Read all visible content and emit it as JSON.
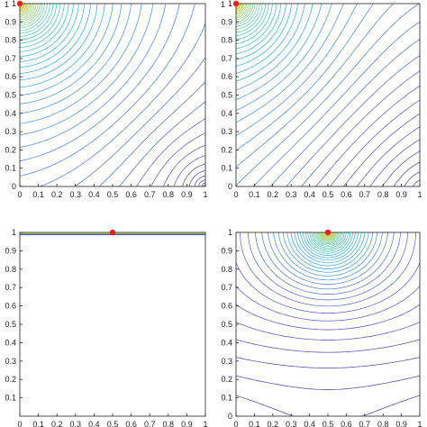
{
  "figure": {
    "background": "#ffffff",
    "axis_color": "#222222",
    "source_point_color": "#e8201e",
    "colormap": [
      "#3b2c86",
      "#4a4fb2",
      "#3f7fd0",
      "#2aa6c6",
      "#4cc49b",
      "#a6cf55",
      "#f0c43a",
      "#fbe55c"
    ]
  },
  "chart_data": [
    {
      "type": "line",
      "subtype": "contour",
      "panel": "top-left",
      "xlim": [
        0,
        1
      ],
      "ylim": [
        0,
        1
      ],
      "xticks": [
        "0",
        "0.1",
        "0.2",
        "0.3",
        "0.4",
        "0.5",
        "0.6",
        "0.7",
        "0.8",
        "0.9",
        "1"
      ],
      "yticks": [
        "0",
        "0.1",
        "0.2",
        "0.3",
        "0.4",
        "0.5",
        "0.6",
        "0.7",
        "0.8",
        "0.9",
        "1"
      ],
      "source_point": {
        "x": 0.0,
        "y": 1.0
      },
      "source_label": "1",
      "contour_levels": 60,
      "grid": false
    },
    {
      "type": "line",
      "subtype": "contour",
      "panel": "top-right",
      "xlim": [
        0,
        1
      ],
      "ylim": [
        0,
        1
      ],
      "xticks": [
        "0",
        "0.1",
        "0.2",
        "0.3",
        "0.4",
        "0.5",
        "0.6",
        "0.7",
        "0.8",
        "0.9",
        "1"
      ],
      "yticks": [
        "0",
        "0.1",
        "0.2",
        "0.3",
        "0.4",
        "0.5",
        "0.6",
        "0.7",
        "0.8",
        "0.9",
        "1"
      ],
      "source_point": {
        "x": 0.0,
        "y": 1.0
      },
      "source_label": "1",
      "contour_levels": 55,
      "grid": false
    },
    {
      "type": "line",
      "subtype": "contour",
      "panel": "bottom-left",
      "xlim": [
        0,
        1
      ],
      "ylim": [
        0,
        1
      ],
      "xticks": [
        "0",
        "0.1",
        "0.2",
        "0.3",
        "0.4",
        "0.5",
        "0.6",
        "0.7",
        "0.8",
        "0.9",
        "1"
      ],
      "yticks": [
        "0.1",
        "0.2",
        "0.3",
        "0.4",
        "0.5",
        "0.6",
        "0.7",
        "0.8",
        "0.9",
        "1"
      ],
      "source_point": {
        "x": 0.5,
        "y": 1.0
      },
      "contour_levels": 6,
      "grid": false
    },
    {
      "type": "line",
      "subtype": "contour",
      "panel": "bottom-right",
      "xlim": [
        0,
        1
      ],
      "ylim": [
        0,
        1
      ],
      "xticks": [
        "0",
        "0.1",
        "0.2",
        "0.3",
        "0.4",
        "0.5",
        "0.6",
        "0.7",
        "0.8",
        "0.9",
        "1"
      ],
      "yticks": [
        "0",
        "0.1",
        "0.2",
        "0.3",
        "0.4",
        "0.5",
        "0.6",
        "0.7",
        "0.8",
        "0.9",
        "1"
      ],
      "source_point": {
        "x": 0.5,
        "y": 1.0
      },
      "contour_levels": 48,
      "grid": false
    }
  ]
}
